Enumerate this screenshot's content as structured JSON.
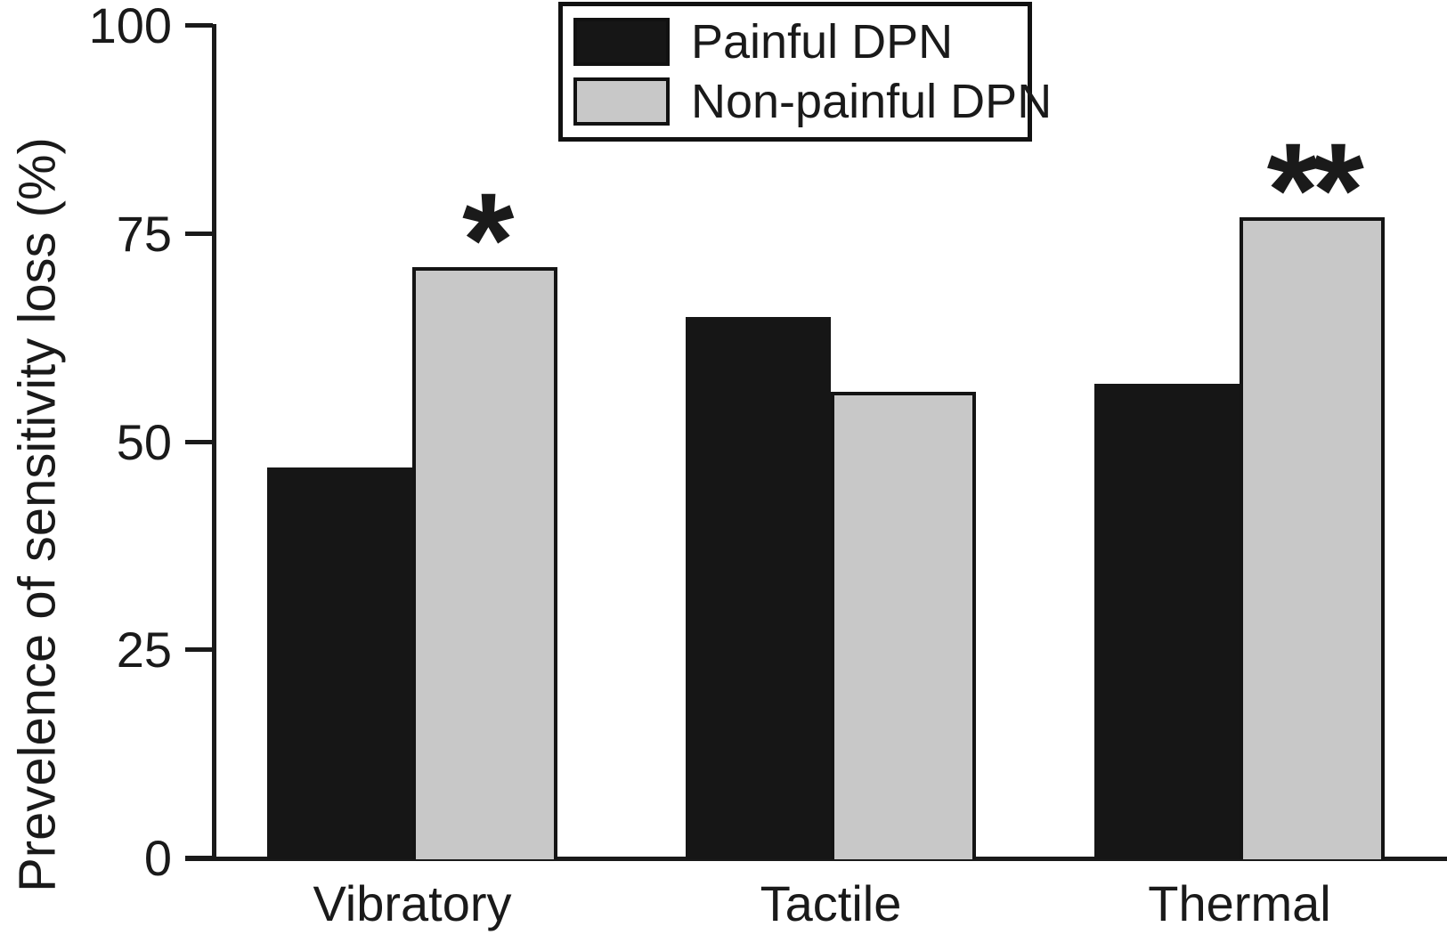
{
  "chart_data": {
    "type": "bar",
    "title": "",
    "ylabel": "Prevelence of sensitivity loss (%)",
    "xlabel": "",
    "ylim": [
      0,
      100
    ],
    "yticks": [
      0,
      25,
      50,
      75,
      100
    ],
    "grid": false,
    "legend_position": "top-center",
    "categories": [
      "Vibratory",
      "Tactile",
      "Thermal"
    ],
    "series": [
      {
        "name": "Painful DPN",
        "color": "#161616",
        "values": [
          47,
          65,
          57
        ]
      },
      {
        "name": "Non-painful DPN",
        "color": "#c8c8c8",
        "values": [
          71,
          56,
          77
        ]
      }
    ],
    "annotations": [
      {
        "category": "Vibratory",
        "series": "Non-painful DPN",
        "text": "*"
      },
      {
        "category": "Thermal",
        "series": "Non-painful DPN",
        "text": "**"
      }
    ]
  }
}
